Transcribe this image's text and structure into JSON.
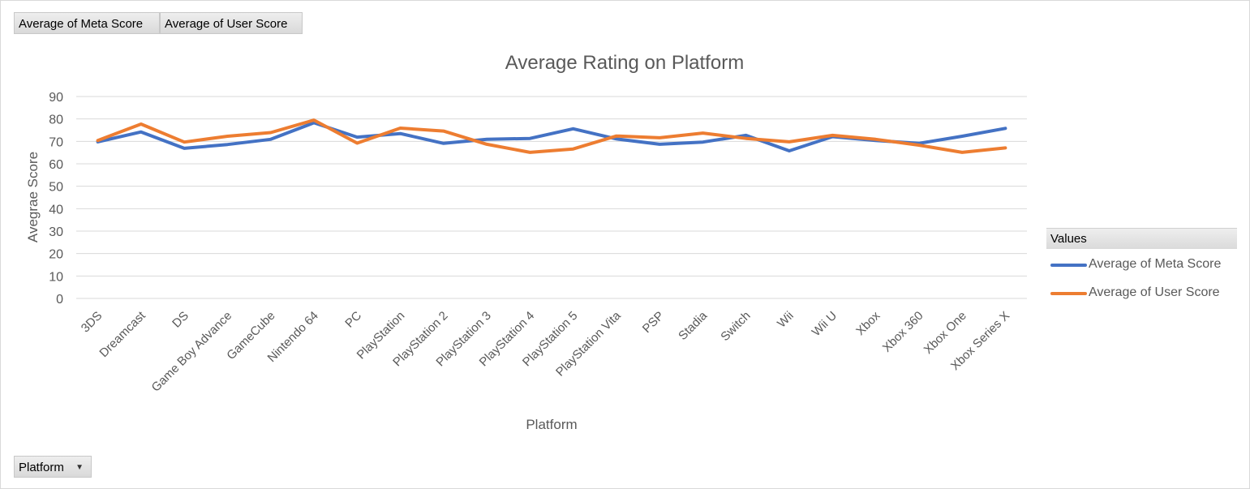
{
  "field_buttons": {
    "meta": "Average of Meta  Score",
    "user": "Average of User Score",
    "platform": "Platform"
  },
  "legend": {
    "header": "Values",
    "items": [
      {
        "label": "Average of Meta Score",
        "color": "#4472C4"
      },
      {
        "label": "Average of User Score",
        "color": "#ED7D31"
      }
    ]
  },
  "chart_data": {
    "type": "line",
    "title": "Average Rating on Platform",
    "xlabel": "Platform",
    "ylabel": "Avegrae Score",
    "ylim": [
      0,
      90
    ],
    "yticks": [
      0,
      10,
      20,
      30,
      40,
      50,
      60,
      70,
      80,
      90
    ],
    "grid": true,
    "legend_position": "right",
    "categories": [
      "3DS",
      "Dreamcast",
      "DS",
      "Game Boy Advance",
      "GameCube",
      "Nintendo 64",
      "PC",
      "PlayStation",
      "PlayStation 2",
      "PlayStation 3",
      "PlayStation 4",
      "PlayStation 5",
      "PlayStation Vita",
      "PSP",
      "Stadia",
      "Switch",
      "Wii",
      "Wii U",
      "Xbox",
      "Xbox 360",
      "Xbox One",
      "Xbox Series X"
    ],
    "series": [
      {
        "name": "Average of Meta Score",
        "color": "#4472C4",
        "values": [
          69.8,
          74.2,
          66.9,
          68.6,
          70.9,
          78.3,
          71.9,
          73.5,
          69.1,
          70.9,
          71.3,
          75.6,
          71.1,
          68.7,
          69.7,
          72.7,
          65.8,
          72.1,
          70.4,
          69.1,
          72.3,
          75.8
        ]
      },
      {
        "name": "Average of User Score",
        "color": "#ED7D31",
        "values": [
          70.4,
          77.7,
          69.7,
          72.3,
          73.9,
          79.5,
          69.2,
          75.9,
          74.6,
          68.7,
          65.1,
          66.6,
          72.4,
          71.6,
          73.7,
          71.3,
          69.8,
          72.7,
          70.9,
          68.3,
          65.1,
          67.1
        ]
      }
    ]
  }
}
